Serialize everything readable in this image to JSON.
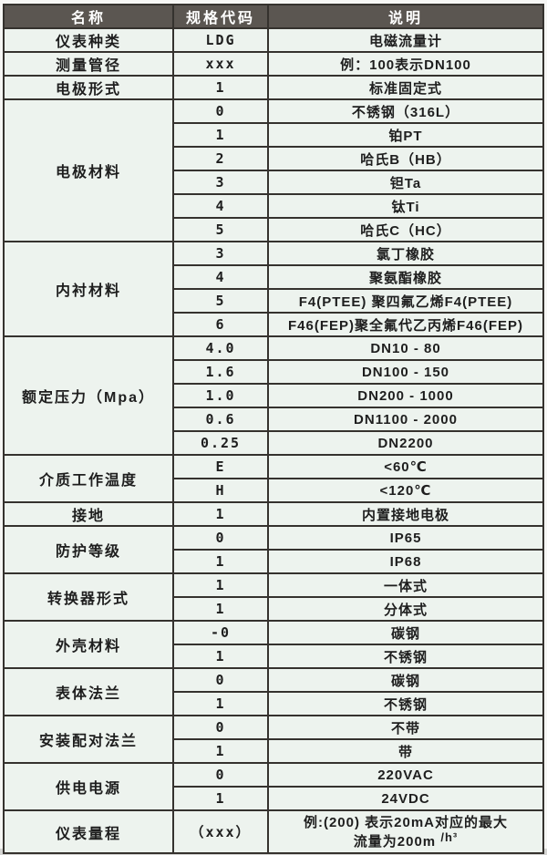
{
  "table": {
    "colors": {
      "header_bg": "#5b5651",
      "header_fg": "#ffffff",
      "cell_bg": "#edf3ee",
      "border": "#35322e",
      "text": "#1e1e1e"
    },
    "header": {
      "name": "名称",
      "code": "规格代码",
      "desc": "说明"
    },
    "groups": [
      {
        "name": "仪表种类",
        "rows": [
          {
            "code": "LDG",
            "desc": "电磁流量计"
          }
        ]
      },
      {
        "name": "测量管径",
        "rows": [
          {
            "code": "xxx",
            "desc": "例：100表示DN100"
          }
        ]
      },
      {
        "name": "电极形式",
        "rows": [
          {
            "code": "1",
            "desc": "标准固定式"
          }
        ]
      },
      {
        "name": "电极材料",
        "rows": [
          {
            "code": "0",
            "desc": "不锈钢（316L）"
          },
          {
            "code": "1",
            "desc": "铂PT"
          },
          {
            "code": "2",
            "desc": "哈氏B（HB）"
          },
          {
            "code": "3",
            "desc": "钽Ta"
          },
          {
            "code": "4",
            "desc": "钛Ti"
          },
          {
            "code": "5",
            "desc": "哈氏C（HC）"
          }
        ]
      },
      {
        "name": "内衬材料",
        "rows": [
          {
            "code": "3",
            "desc": "氯丁橡胶"
          },
          {
            "code": "4",
            "desc": "聚氨酯橡胶"
          },
          {
            "code": "5",
            "desc": "F4(PTEE) 聚四氟乙烯F4(PTEE)"
          },
          {
            "code": "6",
            "desc": "F46(FEP)聚全氟代乙丙烯F46(FEP)"
          }
        ]
      },
      {
        "name": "额定压力（Mpa）",
        "rows": [
          {
            "code": "4.0",
            "desc": "DN10 - 80"
          },
          {
            "code": "1.6",
            "desc": "DN100 - 150"
          },
          {
            "code": "1.0",
            "desc": "DN200 - 1000"
          },
          {
            "code": "0.6",
            "desc": "DN1100 - 2000"
          },
          {
            "code": "0.25",
            "desc": "DN2200"
          }
        ]
      },
      {
        "name": "介质工作温度",
        "rows": [
          {
            "code": "E",
            "desc": "<60℃"
          },
          {
            "code": "H",
            "desc": "<120℃"
          }
        ]
      },
      {
        "name": "接地",
        "rows": [
          {
            "code": "1",
            "desc": "内置接地电极"
          }
        ]
      },
      {
        "name": "防护等级",
        "rows": [
          {
            "code": "0",
            "desc": "IP65"
          },
          {
            "code": "1",
            "desc": "IP68"
          }
        ]
      },
      {
        "name": "转换器形式",
        "rows": [
          {
            "code": "1",
            "desc": "一体式"
          },
          {
            "code": "1",
            "desc": "分体式"
          }
        ]
      },
      {
        "name": "外壳材料",
        "rows": [
          {
            "code": "-0",
            "desc": "碳钢"
          },
          {
            "code": "1",
            "desc": "不锈钢"
          }
        ]
      },
      {
        "name": "表体法兰",
        "rows": [
          {
            "code": "0",
            "desc": "碳钢"
          },
          {
            "code": "1",
            "desc": "不锈钢"
          }
        ]
      },
      {
        "name": "安装配对法兰",
        "rows": [
          {
            "code": "0",
            "desc": "不带"
          },
          {
            "code": "1",
            "desc": "带"
          }
        ]
      },
      {
        "name": "供电电源",
        "rows": [
          {
            "code": "0",
            "desc": "220VAC"
          },
          {
            "code": "1",
            "desc": "24VDC"
          }
        ]
      },
      {
        "name": "仪表量程",
        "rows": [
          {
            "code": "（xxx）",
            "tall": true,
            "desc_lines": [
              "例:(200) 表示20mA对应的最大",
              {
                "text": "流量为200m ",
                "sup": "/h³"
              }
            ]
          }
        ]
      }
    ]
  }
}
